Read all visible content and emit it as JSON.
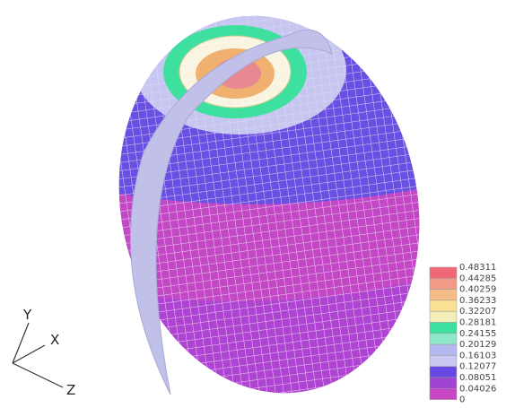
{
  "legend": {
    "levels": [
      0.48311,
      0.44285,
      0.40259,
      0.36233,
      0.32207,
      0.28181,
      0.24155,
      0.20129,
      0.16103,
      0.12077,
      0.08051,
      0.04026,
      0
    ],
    "colors": [
      "#f06878",
      "#f29a88",
      "#f5be88",
      "#f8e094",
      "#f3eeb8",
      "#3ee0a0",
      "#8ee8c8",
      "#b4b8f0",
      "#c8c8f2",
      "#6648e2",
      "#a044d4",
      "#c846c4"
    ]
  },
  "axes": {
    "labels": [
      "Y",
      "X",
      "Z"
    ]
  }
}
